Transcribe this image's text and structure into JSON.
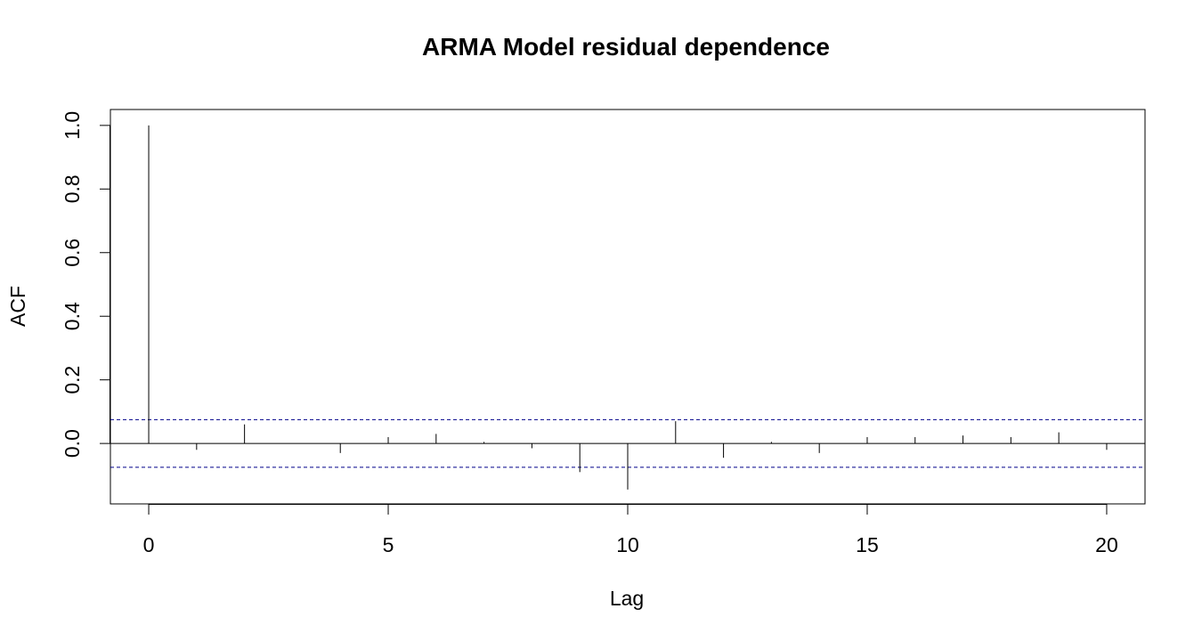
{
  "chart_data": {
    "type": "bar",
    "title": "ARMA Model residual dependence",
    "xlabel": "Lag",
    "ylabel": "ACF",
    "xlim": [
      -0.8,
      20.8
    ],
    "ylim": [
      -0.19,
      1.05
    ],
    "x_ticks": [
      0,
      5,
      10,
      15,
      20
    ],
    "x_tick_labels": [
      "0",
      "5",
      "10",
      "15",
      "20"
    ],
    "y_ticks": [
      0.0,
      0.2,
      0.4,
      0.6,
      0.8,
      1.0
    ],
    "y_tick_labels": [
      "0.0",
      "0.2",
      "0.4",
      "0.6",
      "0.8",
      "1.0"
    ],
    "grid": false,
    "zero_line": true,
    "confidence_bound": 0.075,
    "confidence_color": "#00008b",
    "bar_color": "#000000",
    "lags": [
      0,
      1,
      2,
      3,
      4,
      5,
      6,
      7,
      8,
      9,
      10,
      11,
      12,
      13,
      14,
      15,
      16,
      17,
      18,
      19,
      20
    ],
    "values": [
      1.0,
      -0.02,
      0.06,
      0.0,
      -0.03,
      0.02,
      0.03,
      0.005,
      -0.015,
      -0.09,
      -0.145,
      0.07,
      -0.045,
      0.005,
      -0.03,
      0.02,
      0.02,
      0.025,
      0.02,
      0.035,
      -0.02
    ]
  }
}
